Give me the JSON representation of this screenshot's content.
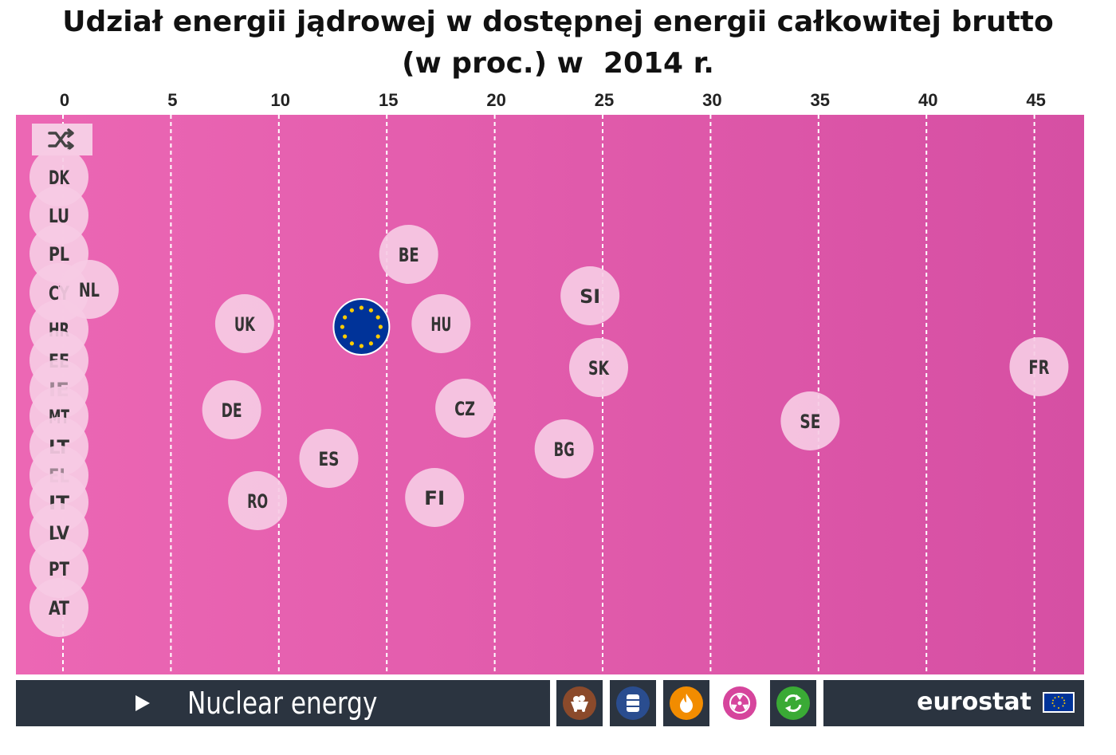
{
  "title_line1": "Udział energii jądrowej w dostępnej energii całkowitej brutto",
  "title_line2": "(w proc.) w  2014 r.",
  "colors": {
    "plot_bg_left": "#ec67b4",
    "plot_bg_right": "#d64fa3",
    "bubble": "#f6cbe4",
    "bubble_text": "#333333",
    "eu_blue": "#003399",
    "eu_star": "#ffcc00",
    "bar_bg": "#2b3440"
  },
  "shuffle_icon": "shuffle-icon",
  "chart_data": {
    "type": "scatter",
    "title": "Udział energii jądrowej w dostępnej energii całkowitej brutto (w proc.) w  2014 r.",
    "xlim": [
      0,
      47
    ],
    "x_ticks": [
      0,
      5,
      10,
      15,
      20,
      25,
      30,
      35,
      40,
      45
    ],
    "grid": "vertical dashed",
    "points": [
      {
        "label": "DK",
        "x": 0
      },
      {
        "label": "LU",
        "x": 0
      },
      {
        "label": "PL",
        "x": 0
      },
      {
        "label": "CY",
        "x": 0
      },
      {
        "label": "NL",
        "x": 1.4
      },
      {
        "label": "HR",
        "x": 0
      },
      {
        "label": "EE",
        "x": 0
      },
      {
        "label": "IE",
        "x": 0
      },
      {
        "label": "MT",
        "x": 0
      },
      {
        "label": "LT",
        "x": 0
      },
      {
        "label": "EL",
        "x": 0
      },
      {
        "label": "IT",
        "x": 0
      },
      {
        "label": "LV",
        "x": 0
      },
      {
        "label": "PT",
        "x": 0
      },
      {
        "label": "AT",
        "x": 0
      },
      {
        "label": "BE",
        "x": 16.2
      },
      {
        "label": "UK",
        "x": 8.6
      },
      {
        "label": "HU",
        "x": 17.7
      },
      {
        "label": "SI",
        "x": 24.6
      },
      {
        "label": "SK",
        "x": 25.0
      },
      {
        "label": "FR",
        "x": 45.4
      },
      {
        "label": "DE",
        "x": 8.0
      },
      {
        "label": "CZ",
        "x": 18.8
      },
      {
        "label": "SE",
        "x": 34.8
      },
      {
        "label": "ES",
        "x": 12.5
      },
      {
        "label": "BG",
        "x": 23.4
      },
      {
        "label": "RO",
        "x": 9.2
      },
      {
        "label": "FI",
        "x": 17.4
      },
      {
        "label": "EU",
        "x": 13.9
      }
    ]
  },
  "bottom_bar": {
    "energy_label": "Nuclear energy",
    "play_icon": "play-icon",
    "buttons": [
      {
        "name": "coal-icon",
        "color": "#8b4a2b",
        "active": false
      },
      {
        "name": "oil-barrel-icon",
        "color": "#2a4d8f",
        "active": false
      },
      {
        "name": "gas-flame-icon",
        "color": "#f28c00",
        "active": false
      },
      {
        "name": "nuclear-icon",
        "color": "#d6459c",
        "active": true
      },
      {
        "name": "renewables-icon",
        "color": "#3aaa35",
        "active": false
      }
    ],
    "brand": "eurostat",
    "brand_flag_icon": "eu-flag-icon"
  }
}
